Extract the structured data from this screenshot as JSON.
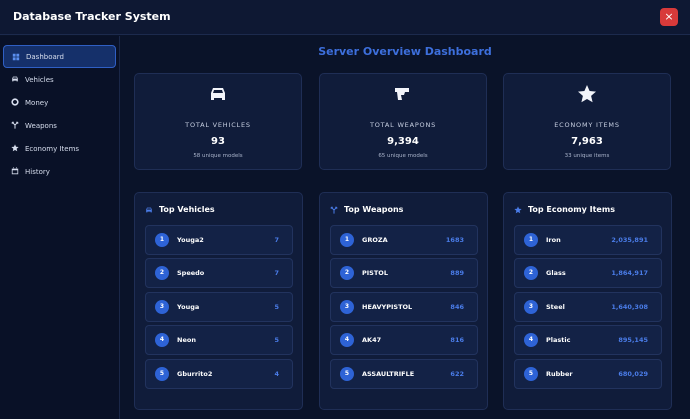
{
  "header": {
    "title": "Database Tracker System",
    "close": "×"
  },
  "sidebar": {
    "items": [
      "Dashboard",
      "Vehicles",
      "Money",
      "Weapons",
      "Economy Items",
      "History"
    ]
  },
  "main": {
    "title": "Server Overview Dashboard",
    "stats": [
      {
        "label": "TOTAL VEHICLES",
        "value": "93",
        "sub": "58 unique models"
      },
      {
        "label": "TOTAL WEAPONS",
        "value": "9,394",
        "sub": "65 unique models"
      },
      {
        "label": "ECONOMY ITEMS",
        "value": "7,963",
        "sub": "33 unique items"
      }
    ],
    "lists": [
      {
        "title": "Top Vehicles",
        "rows": [
          {
            "rank": 1,
            "name": "Youga2",
            "value": "7"
          },
          {
            "rank": 2,
            "name": "Speedo",
            "value": "7"
          },
          {
            "rank": 3,
            "name": "Youga",
            "value": "5"
          },
          {
            "rank": 4,
            "name": "Neon",
            "value": "5"
          },
          {
            "rank": 5,
            "name": "Gburrito2",
            "value": "4"
          }
        ]
      },
      {
        "title": "Top Weapons",
        "rows": [
          {
            "rank": 1,
            "name": "GROZA",
            "value": "1683"
          },
          {
            "rank": 2,
            "name": "PISTOL",
            "value": "889"
          },
          {
            "rank": 3,
            "name": "HEAVYPISTOL",
            "value": "846"
          },
          {
            "rank": 4,
            "name": "AK47",
            "value": "816"
          },
          {
            "rank": 5,
            "name": "ASSAULTRIFLE",
            "value": "622"
          }
        ]
      },
      {
        "title": "Top Economy Items",
        "rows": [
          {
            "rank": 1,
            "name": "Iron",
            "value": "2,035,891"
          },
          {
            "rank": 2,
            "name": "Glass",
            "value": "1,864,917"
          },
          {
            "rank": 3,
            "name": "Steel",
            "value": "1,640,308"
          },
          {
            "rank": 4,
            "name": "Plastic",
            "value": "895,145"
          },
          {
            "rank": 5,
            "name": "Rubber",
            "value": "680,029"
          }
        ]
      }
    ]
  }
}
